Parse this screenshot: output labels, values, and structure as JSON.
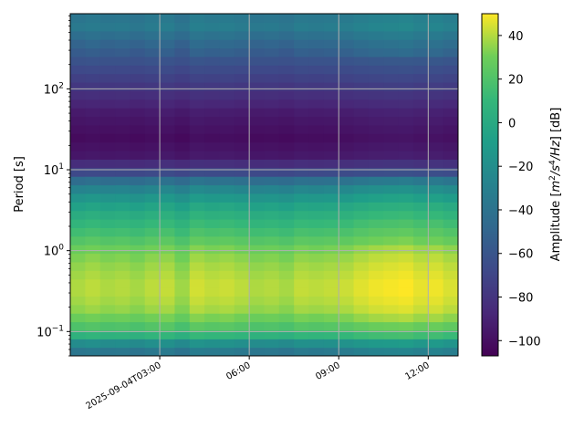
{
  "chart_data": {
    "type": "heatmap",
    "title": "",
    "xlabel": "",
    "ylabel": "Period [s]",
    "yscale": "log",
    "ylim": [
      0.05,
      850
    ],
    "xlim_hours": [
      0.0,
      13.0
    ],
    "x_ticks": [
      {
        "hour": 3,
        "label": "2025-09-04T03:00"
      },
      {
        "hour": 6,
        "label": "06:00"
      },
      {
        "hour": 9,
        "label": "09:00"
      },
      {
        "hour": 12,
        "label": "12:00"
      }
    ],
    "y_ticks": [
      {
        "value": 0.1,
        "base": "10",
        "exp": "−1"
      },
      {
        "value": 1,
        "base": "10",
        "exp": "0"
      },
      {
        "value": 10,
        "base": "10",
        "exp": "1"
      },
      {
        "value": 100,
        "base": "10",
        "exp": "2"
      }
    ],
    "grid": true,
    "colormap": "viridis",
    "colorbar": {
      "label_prefix": "Amplitude [",
      "label_unit": "m",
      "label_unit_exp": "2",
      "label_mid": "/s",
      "label_mid_exp": "4",
      "label_end": "/Hz",
      "label_suffix": "] [dB]",
      "range": [
        -107,
        50
      ],
      "ticks": [
        40,
        20,
        0,
        -20,
        -40,
        -60,
        -80,
        -100
      ],
      "tick_labels": [
        "40",
        "20",
        "0",
        "−20",
        "−40",
        "−60",
        "−80",
        "−100"
      ]
    },
    "time_bins_hours": [
      0.0,
      0.5,
      1.0,
      1.5,
      2.0,
      2.5,
      3.0,
      3.5,
      4.0,
      4.5,
      5.0,
      5.5,
      6.0,
      6.5,
      7.0,
      7.5,
      8.0,
      8.5,
      9.0,
      9.5,
      10.0,
      10.5,
      11.0,
      11.5,
      12.0,
      12.5
    ],
    "period_profile": [
      {
        "period": 850,
        "db": -40
      },
      {
        "period": 600,
        "db": -35
      },
      {
        "period": 400,
        "db": -48
      },
      {
        "period": 200,
        "db": -65
      },
      {
        "period": 100,
        "db": -80
      },
      {
        "period": 50,
        "db": -95
      },
      {
        "period": 25,
        "db": -102
      },
      {
        "period": 15,
        "db": -96
      },
      {
        "period": 10,
        "db": -75
      },
      {
        "period": 8,
        "db": -50
      },
      {
        "period": 6,
        "db": -30
      },
      {
        "period": 4,
        "db": -10
      },
      {
        "period": 2.5,
        "db": 5
      },
      {
        "period": 1.5,
        "db": 18
      },
      {
        "period": 1,
        "db": 30
      },
      {
        "period": 0.6,
        "db": 36
      },
      {
        "period": 0.35,
        "db": 40
      },
      {
        "period": 0.2,
        "db": 36
      },
      {
        "period": 0.13,
        "db": 25
      },
      {
        "period": 0.09,
        "db": 5
      },
      {
        "period": 0.07,
        "db": -25
      },
      {
        "period": 0.05,
        "db": -45
      }
    ],
    "time_variation_db": [
      0,
      2,
      0,
      1,
      -1,
      2,
      3,
      -2,
      5,
      3,
      4,
      2,
      0,
      1,
      -1,
      3,
      2,
      3,
      4,
      7,
      9,
      10,
      11,
      8,
      9,
      6
    ]
  }
}
